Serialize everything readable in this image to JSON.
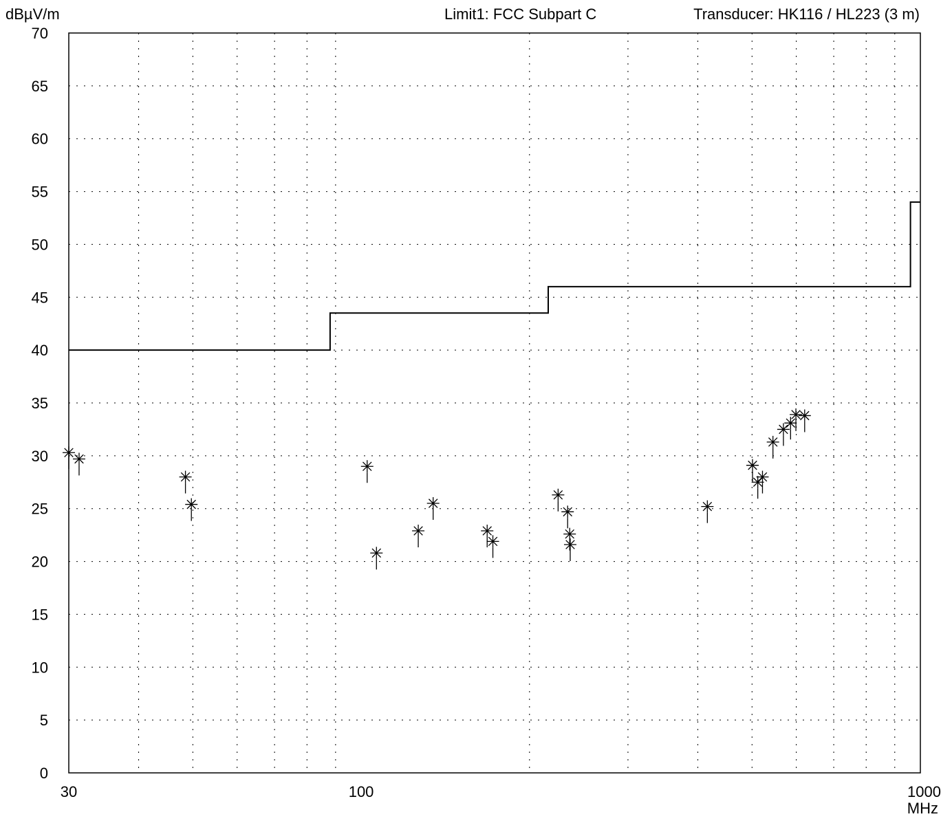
{
  "header": {
    "y_unit": "dBµV/m",
    "limit_label": "Limit1: FCC Subpart C",
    "transducer_label": "Transducer: HK116 / HL223 (3 m)"
  },
  "x_unit": "MHz",
  "chart_data": {
    "type": "scatter",
    "xscale": "log",
    "xlim": [
      30,
      1000
    ],
    "ylim": [
      0,
      70
    ],
    "ylabel": "dBµV/m",
    "xlabel": "MHz",
    "x_tick_labels": [
      {
        "value": 30,
        "label": "30"
      },
      {
        "value": 100,
        "label": "100"
      },
      {
        "value": 1000,
        "label": "1000"
      }
    ],
    "x_grid": [
      40,
      50,
      60,
      70,
      80,
      90,
      200,
      300,
      400,
      500,
      600,
      700,
      800,
      900
    ],
    "y_ticks": [
      0,
      5,
      10,
      15,
      20,
      25,
      30,
      35,
      40,
      45,
      50,
      55,
      60,
      65,
      70
    ],
    "grid": true,
    "limit_line": {
      "name": "Limit1: FCC Subpart C",
      "points": [
        [
          30,
          40
        ],
        [
          88,
          40
        ],
        [
          88,
          43.5
        ],
        [
          216,
          43.5
        ],
        [
          216,
          46
        ],
        [
          960,
          46
        ],
        [
          960,
          54
        ],
        [
          1000,
          54
        ]
      ]
    },
    "measurements": [
      {
        "x": 30.0,
        "y": 30.3
      },
      {
        "x": 31.3,
        "y": 29.7
      },
      {
        "x": 48.5,
        "y": 28.0
      },
      {
        "x": 49.7,
        "y": 25.4
      },
      {
        "x": 102.5,
        "y": 29.0
      },
      {
        "x": 106.5,
        "y": 20.8
      },
      {
        "x": 126.5,
        "y": 22.9
      },
      {
        "x": 134.5,
        "y": 25.5
      },
      {
        "x": 168.0,
        "y": 22.9
      },
      {
        "x": 172.0,
        "y": 21.9
      },
      {
        "x": 225.0,
        "y": 26.3
      },
      {
        "x": 234.0,
        "y": 24.7
      },
      {
        "x": 236.0,
        "y": 22.6
      },
      {
        "x": 236.5,
        "y": 21.6
      },
      {
        "x": 416.0,
        "y": 25.2
      },
      {
        "x": 501.0,
        "y": 29.1
      },
      {
        "x": 512.0,
        "y": 27.5
      },
      {
        "x": 522.0,
        "y": 28.0
      },
      {
        "x": 545.0,
        "y": 31.3
      },
      {
        "x": 569.0,
        "y": 32.5
      },
      {
        "x": 586.0,
        "y": 33.1
      },
      {
        "x": 599.0,
        "y": 33.9
      },
      {
        "x": 621.0,
        "y": 33.8
      }
    ]
  }
}
